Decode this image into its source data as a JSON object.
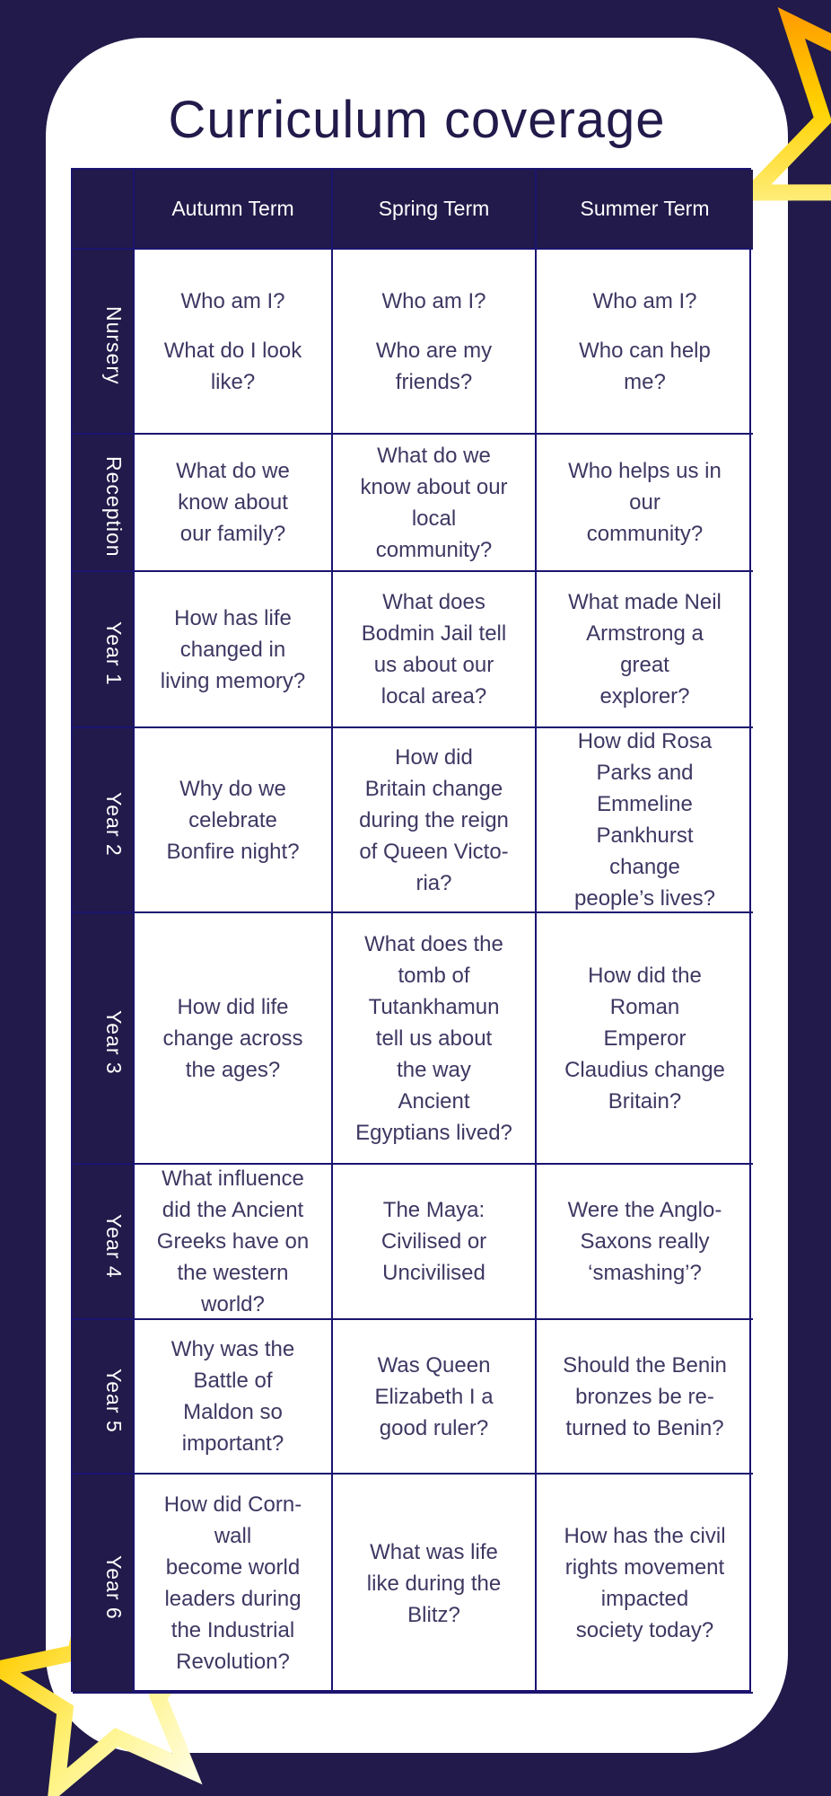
{
  "title": "Curriculum coverage",
  "colors": {
    "background": "#211a4a",
    "card": "#ffffff",
    "border": "#1b1470",
    "star_top": "#ffa500",
    "star_bottom": "#fffcc0"
  },
  "columns": [
    "Autumn Term",
    "Spring Term",
    "Summer Term"
  ],
  "rows": [
    {
      "label": "Nursery",
      "cells": [
        [
          "Who am I?",
          "What do I look\nlike?"
        ],
        [
          "Who am I?",
          "Who are my\nfriends?"
        ],
        [
          "Who am I?",
          "Who can help\nme?"
        ]
      ]
    },
    {
      "label": "Reception",
      "cells": [
        [
          "What do we\nknow about\nour family?"
        ],
        [
          "What do we\nknow about our\nlocal\ncommunity?"
        ],
        [
          "Who helps us in\nour\ncommunity?"
        ]
      ]
    },
    {
      "label": "Year 1",
      "cells": [
        [
          "How has life\nchanged in\nliving memory?"
        ],
        [
          "What does\nBodmin Jail tell\nus about our\nlocal area?"
        ],
        [
          "What made Neil\nArmstrong a\ngreat\nexplorer?"
        ]
      ]
    },
    {
      "label": "Year 2",
      "cells": [
        [
          "Why do we\ncelebrate\nBonfire night?"
        ],
        [
          "How did\nBritain change\nduring the reign\nof Queen Victo-\nria?"
        ],
        [
          "How did Rosa\nParks and\nEmmeline\nPankhurst\nchange\npeople’s lives?"
        ]
      ]
    },
    {
      "label": "Year 3",
      "cells": [
        [
          "How did life\nchange across\nthe ages?"
        ],
        [
          "What does the\ntomb of\nTutankhamun\ntell us about\nthe way\nAncient\nEgyptians lived?"
        ],
        [
          "How did the\nRoman\nEmperor\nClaudius change\nBritain?"
        ]
      ]
    },
    {
      "label": "Year 4",
      "cells": [
        [
          "What influence\ndid the Ancient\nGreeks have on\nthe western\nworld?"
        ],
        [
          "The Maya:\nCivilised or\nUncivilised"
        ],
        [
          "Were the Anglo-\nSaxons really\n‘smashing’?"
        ]
      ]
    },
    {
      "label": "Year 5",
      "cells": [
        [
          "Why was the\nBattle of\nMaldon so\nimportant?"
        ],
        [
          "Was Queen\nElizabeth I a\ngood ruler?"
        ],
        [
          "Should the Benin\nbronzes be re-\nturned to Benin?"
        ]
      ]
    },
    {
      "label": "Year 6",
      "cells": [
        [
          "How did Corn-\nwall\nbecome world\nleaders during\nthe Industrial\nRevolution?"
        ],
        [
          "What was life\nlike during the\nBlitz?"
        ],
        [
          "How has the civil\nrights movement\nimpacted\nsociety today?"
        ]
      ]
    }
  ]
}
